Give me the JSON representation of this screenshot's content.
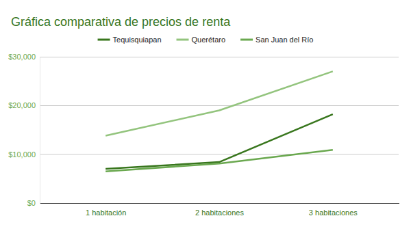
{
  "chart_data": {
    "type": "line",
    "title": "Gráfica comparativa de precios de renta",
    "categories": [
      "1 habitación",
      "2 habitaciones",
      "3 habitaciones"
    ],
    "series": [
      {
        "name": "Tequisquiapan",
        "color": "#38761d",
        "values": [
          7000,
          8400,
          18200
        ]
      },
      {
        "name": "Querétaro",
        "color": "#93c47d",
        "values": [
          13800,
          19000,
          27000
        ]
      },
      {
        "name": "San Juan del Río",
        "color": "#6aa84f",
        "values": [
          6500,
          8100,
          10900
        ]
      }
    ],
    "ylim": [
      0,
      30000
    ],
    "yticks": [
      {
        "value": 0,
        "label": "$0"
      },
      {
        "value": 10000,
        "label": "$10,000"
      },
      {
        "value": 20000,
        "label": "$20,000"
      },
      {
        "value": 30000,
        "label": "$30,000"
      }
    ],
    "grid": true,
    "legend": "top"
  }
}
